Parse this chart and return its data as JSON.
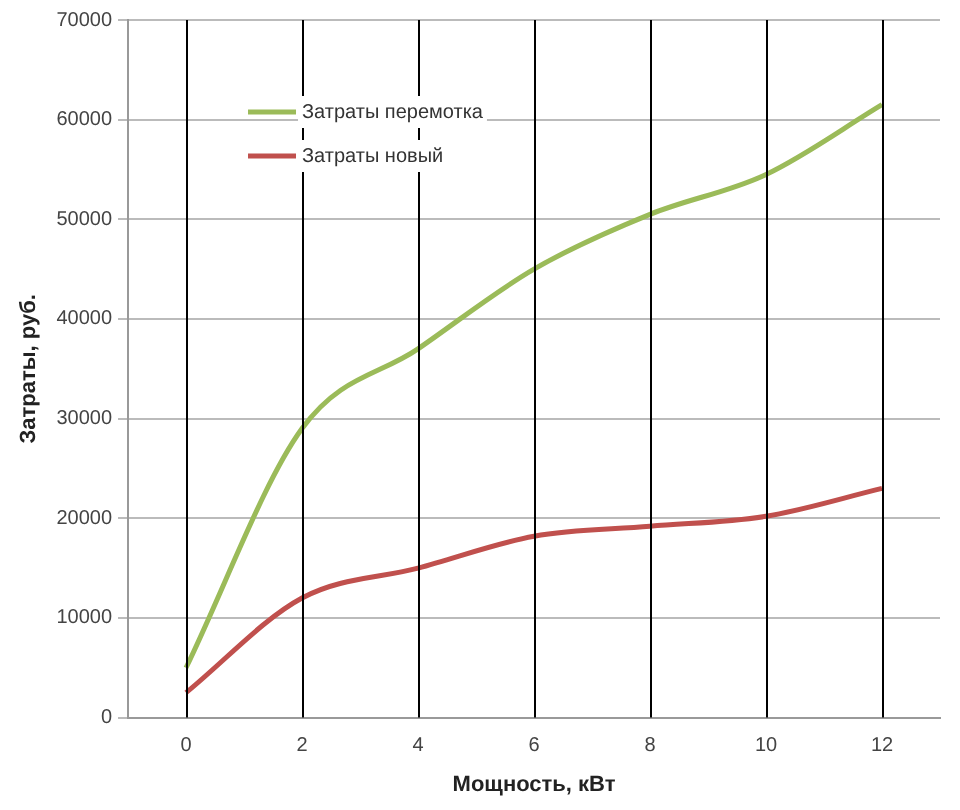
{
  "chart_data": {
    "type": "line",
    "xlabel": "Мощность, кВт",
    "ylabel": "Затраты, руб.",
    "x": [
      0,
      2,
      4,
      6,
      8,
      10,
      12
    ],
    "series": [
      {
        "name": "Затраты перемотка",
        "color": "#9bbb59",
        "values": [
          5000,
          29000,
          37000,
          45000,
          50500,
          54500,
          61500
        ]
      },
      {
        "name": "Затраты новый",
        "color": "#c0504d",
        "values": [
          2500,
          12000,
          15000,
          18200,
          19200,
          20200,
          23000
        ]
      }
    ],
    "ref_lines": [
      {
        "axis": "x",
        "value": 0,
        "color": "#000000"
      },
      {
        "axis": "x",
        "value": 2,
        "color": "#000000"
      },
      {
        "axis": "x",
        "value": 4,
        "color": "#000000"
      },
      {
        "axis": "x",
        "value": 6,
        "color": "#000000"
      },
      {
        "axis": "x",
        "value": 8,
        "color": "#000000"
      },
      {
        "axis": "x",
        "value": 10,
        "color": "#000000"
      },
      {
        "axis": "x",
        "value": 12,
        "color": "#000000"
      }
    ],
    "xlim": [
      -1,
      13
    ],
    "xticks": [
      0,
      2,
      4,
      6,
      8,
      10,
      12
    ],
    "ylim": [
      0,
      70000
    ],
    "yticks": [
      0,
      10000,
      20000,
      30000,
      40000,
      50000,
      60000,
      70000
    ],
    "grid": "y",
    "legend": "top left",
    "marker": "none",
    "line_style": "solid"
  }
}
